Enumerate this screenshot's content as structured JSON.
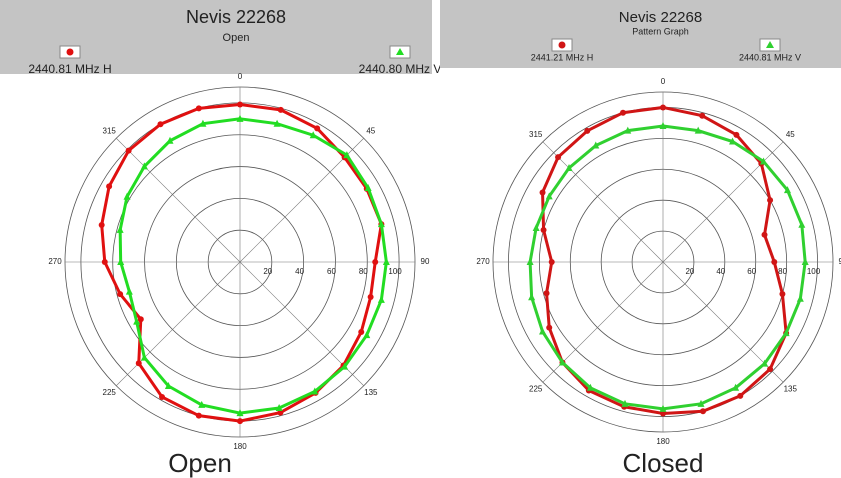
{
  "chart_data": [
    {
      "type": "polar",
      "title": "Nevis 22268",
      "subtitle": "Open",
      "caption": "Open",
      "theta": [
        0,
        15,
        30,
        45,
        60,
        75,
        90,
        105,
        120,
        135,
        150,
        165,
        180,
        195,
        210,
        225,
        240,
        255,
        270,
        285,
        300,
        315,
        330,
        345
      ],
      "series": [
        {
          "name": "2440.81 MHz H",
          "color": "#e01010",
          "marker": "circle",
          "values": [
            99,
            99,
            97,
            93,
            92,
            92,
            85,
            85,
            88,
            92,
            95,
            98,
            100,
            100,
            98,
            90,
            72,
            78,
            85,
            90,
            95,
            99,
            100,
            100
          ]
        },
        {
          "name": "2440.80 MHz V",
          "color": "#22dd22",
          "marker": "triangle",
          "values": [
            90,
            90,
            92,
            95,
            93,
            92,
            92,
            92,
            92,
            93,
            94,
            95,
            95,
            93,
            90,
            85,
            75,
            72,
            75,
            78,
            82,
            85,
            88,
            90
          ]
        }
      ],
      "rlim": [
        0,
        110
      ],
      "rticks": [
        20,
        40,
        60,
        80,
        100
      ],
      "thetaticks": [
        0,
        45,
        90,
        135,
        180,
        225,
        270,
        315
      ]
    },
    {
      "type": "polar",
      "title": "Nevis 22268",
      "subtitle": "Pattern Graph",
      "caption": "Closed",
      "theta": [
        0,
        15,
        30,
        45,
        60,
        75,
        90,
        105,
        120,
        135,
        150,
        165,
        180,
        195,
        210,
        225,
        240,
        255,
        270,
        285,
        300,
        315,
        330,
        345
      ],
      "series": [
        {
          "name": "2441.21 MHz H",
          "color": "#d01515",
          "marker": "circle",
          "values": [
            100,
            98,
            95,
            90,
            80,
            68,
            72,
            80,
            92,
            98,
            100,
            100,
            98,
            97,
            96,
            92,
            85,
            78,
            72,
            80,
            90,
            96,
            98,
            100
          ]
        },
        {
          "name": "2440.81 MHz V",
          "color": "#30d030",
          "marker": "triangle",
          "values": [
            88,
            88,
            90,
            92,
            93,
            93,
            92,
            92,
            92,
            93,
            94,
            95,
            95,
            95,
            94,
            92,
            90,
            88,
            86,
            85,
            85,
            86,
            87,
            88
          ]
        }
      ],
      "rlim": [
        0,
        110
      ],
      "rticks": [
        20,
        40,
        60,
        80,
        100
      ],
      "thetaticks": [
        0,
        45,
        90,
        135,
        180,
        225,
        270,
        315
      ]
    }
  ]
}
